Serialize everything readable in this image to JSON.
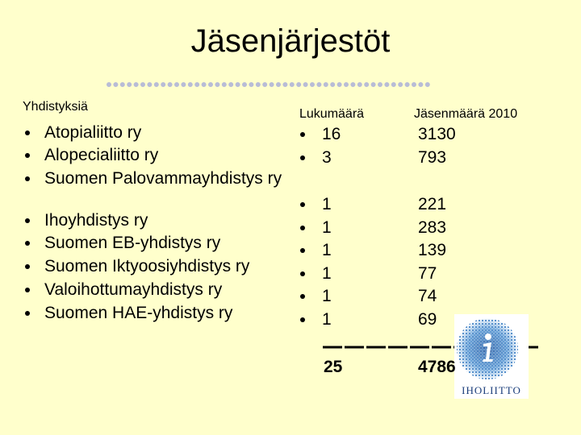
{
  "title": "Jäsenjärjestöt",
  "headers": {
    "name": "Yhdistyksiä",
    "count": "Lukumäärä",
    "members": "Jäsenmäärä 2010"
  },
  "rows": [
    {
      "name": "Atopialiitto ry",
      "count": 16,
      "members": 3130
    },
    {
      "name": "Alopecialiitto ry",
      "count": 3,
      "members": 793
    },
    {
      "name": "Suomen Palovammayhdistys ry",
      "count": 1,
      "members": 221
    },
    {
      "name": "Ihoyhdistys ry",
      "count": 1,
      "members": 283
    },
    {
      "name": "Suomen EB-yhdistys ry",
      "count": 1,
      "members": 139
    },
    {
      "name": "Suomen Iktyoosiyhdistys ry",
      "count": 1,
      "members": 77
    },
    {
      "name": "Valoihottumayhdistys ry",
      "count": 1,
      "members": 74
    },
    {
      "name": "Suomen HAE-yhdistys ry",
      "count": 1,
      "members": 69
    }
  ],
  "totals": {
    "count": 25,
    "members": 4786
  },
  "logo": {
    "text": "IHOLIITTO"
  }
}
